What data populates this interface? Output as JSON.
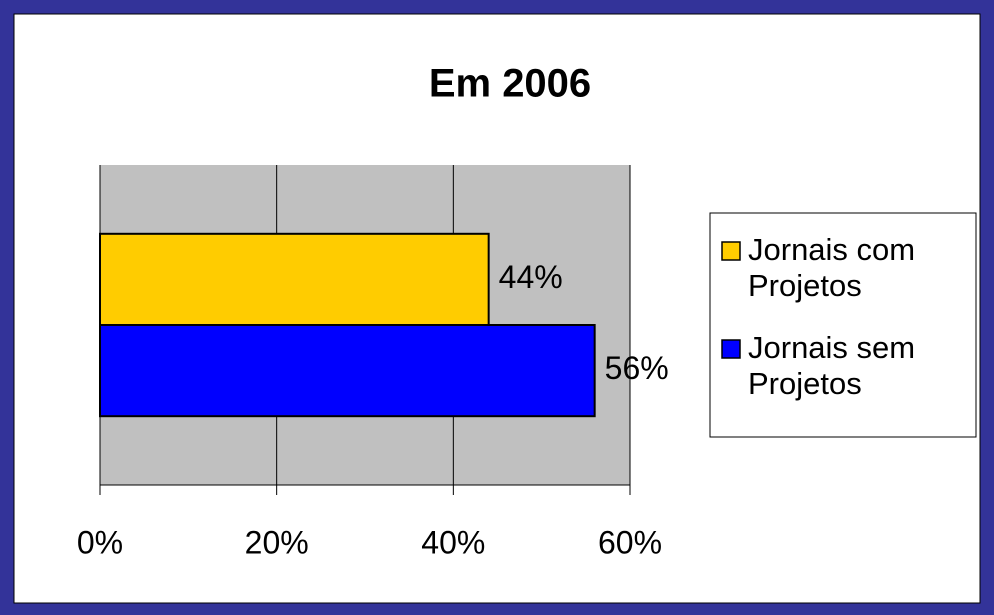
{
  "chart_data": {
    "type": "bar",
    "orientation": "horizontal",
    "title": "Em 2006",
    "categories": [
      null
    ],
    "series": [
      {
        "name": "Jornais com Projetos",
        "color": "#ffcc00",
        "values": [
          44
        ],
        "value_labels": [
          "44%"
        ]
      },
      {
        "name": "Jornais sem Projetos",
        "color": "#0000ff",
        "values": [
          56
        ],
        "value_labels": [
          "56%"
        ]
      }
    ],
    "xlim": [
      0,
      60
    ],
    "xticks": [
      {
        "value": 0,
        "label": "0%"
      },
      {
        "value": 20,
        "label": "20%"
      },
      {
        "value": 40,
        "label": "40%"
      },
      {
        "value": 60,
        "label": "60%"
      }
    ],
    "grid": true,
    "legend": "right"
  }
}
